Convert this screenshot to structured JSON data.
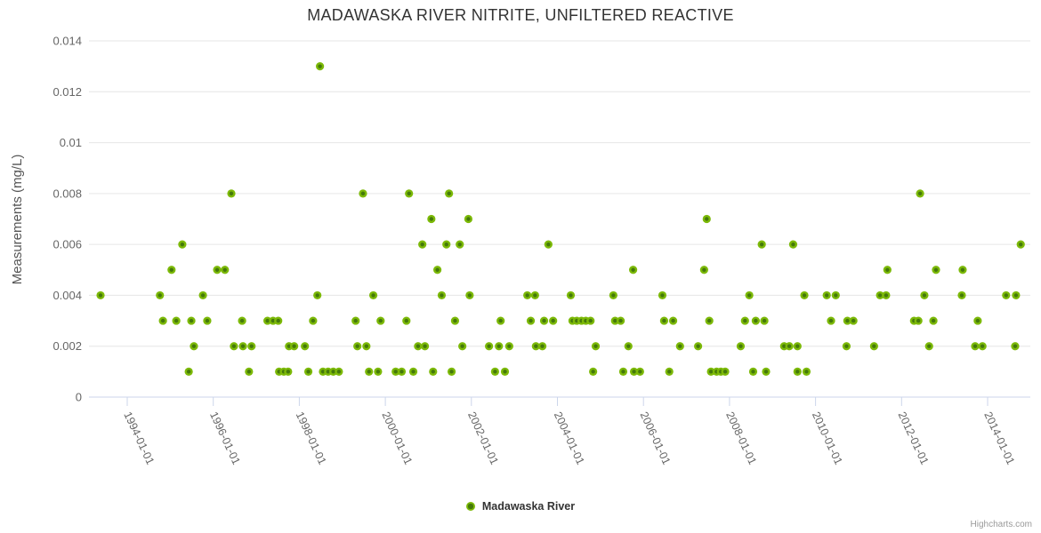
{
  "credits": "Highcharts.com",
  "colors": {
    "point_outer": "#7cb908",
    "point_inner": "#44790a",
    "grid_line": "#e6e6e6",
    "axis_line": "#ccd6eb",
    "title_text": "#333333",
    "axis_label_text": "#666666",
    "credits_text": "#999999"
  },
  "chart_data": {
    "type": "scatter",
    "title": "MADAWASKA RIVER NITRITE, UNFILTERED REACTIVE",
    "xlabel": "",
    "ylabel": "Measurements (mg/L)",
    "grid": true,
    "legend_position": "bottom-center",
    "xlim": [
      1993.1,
      2015.0
    ],
    "ylim": [
      0,
      0.014
    ],
    "x_tick_years": [
      1994,
      1996,
      1998,
      2000,
      2002,
      2004,
      2006,
      2008,
      2010,
      2012,
      2014
    ],
    "x_tick_labels": [
      "1994-01-01",
      "1996-01-01",
      "1998-01-01",
      "2000-01-01",
      "2002-01-01",
      "2004-01-01",
      "2006-01-01",
      "2008-01-01",
      "2010-01-01",
      "2012-01-01",
      "2014-01-01"
    ],
    "y_ticks": [
      0,
      0.002,
      0.004,
      0.006,
      0.008,
      0.01,
      0.012,
      0.014
    ],
    "y_tick_labels": [
      "0",
      "0.002",
      "0.004",
      "0.006",
      "0.008",
      "0.01",
      "0.012",
      "0.014"
    ],
    "series": [
      {
        "name": "Madawaska River",
        "points": [
          [
            1993.38,
            0.004
          ],
          [
            1994.76,
            0.004
          ],
          [
            1994.83,
            0.003
          ],
          [
            1995.03,
            0.005
          ],
          [
            1995.14,
            0.003
          ],
          [
            1995.28,
            0.006
          ],
          [
            1995.43,
            0.001
          ],
          [
            1995.49,
            0.003
          ],
          [
            1995.55,
            0.002
          ],
          [
            1995.76,
            0.004
          ],
          [
            1995.86,
            0.003
          ],
          [
            1996.09,
            0.005
          ],
          [
            1996.27,
            0.005
          ],
          [
            1996.42,
            0.008
          ],
          [
            1996.48,
            0.002
          ],
          [
            1996.67,
            0.003
          ],
          [
            1996.69,
            0.002
          ],
          [
            1996.83,
            0.001
          ],
          [
            1996.89,
            0.002
          ],
          [
            1997.26,
            0.003
          ],
          [
            1997.39,
            0.003
          ],
          [
            1997.51,
            0.003
          ],
          [
            1997.53,
            0.001
          ],
          [
            1997.64,
            0.001
          ],
          [
            1997.74,
            0.001
          ],
          [
            1997.76,
            0.002
          ],
          [
            1997.88,
            0.002
          ],
          [
            1998.13,
            0.002
          ],
          [
            1998.21,
            0.001
          ],
          [
            1998.32,
            0.003
          ],
          [
            1998.42,
            0.004
          ],
          [
            1998.48,
            0.013
          ],
          [
            1998.55,
            0.001
          ],
          [
            1998.67,
            0.001
          ],
          [
            1998.79,
            0.001
          ],
          [
            1998.92,
            0.001
          ],
          [
            1999.31,
            0.003
          ],
          [
            1999.35,
            0.002
          ],
          [
            1999.48,
            0.008
          ],
          [
            1999.56,
            0.002
          ],
          [
            1999.62,
            0.001
          ],
          [
            1999.72,
            0.004
          ],
          [
            1999.83,
            0.001
          ],
          [
            1999.89,
            0.003
          ],
          [
            2000.24,
            0.001
          ],
          [
            2000.38,
            0.001
          ],
          [
            2000.49,
            0.003
          ],
          [
            2000.55,
            0.008
          ],
          [
            2000.65,
            0.001
          ],
          [
            2000.76,
            0.002
          ],
          [
            2000.86,
            0.006
          ],
          [
            2000.92,
            0.002
          ],
          [
            2001.07,
            0.007
          ],
          [
            2001.11,
            0.001
          ],
          [
            2001.21,
            0.005
          ],
          [
            2001.31,
            0.004
          ],
          [
            2001.42,
            0.006
          ],
          [
            2001.48,
            0.008
          ],
          [
            2001.54,
            0.001
          ],
          [
            2001.62,
            0.003
          ],
          [
            2001.73,
            0.006
          ],
          [
            2001.79,
            0.002
          ],
          [
            2001.93,
            0.007
          ],
          [
            2001.96,
            0.004
          ],
          [
            2002.41,
            0.002
          ],
          [
            2002.55,
            0.001
          ],
          [
            2002.64,
            0.002
          ],
          [
            2002.68,
            0.003
          ],
          [
            2002.78,
            0.001
          ],
          [
            2002.88,
            0.002
          ],
          [
            2003.3,
            0.004
          ],
          [
            2003.38,
            0.003
          ],
          [
            2003.48,
            0.004
          ],
          [
            2003.5,
            0.002
          ],
          [
            2003.65,
            0.002
          ],
          [
            2003.69,
            0.003
          ],
          [
            2003.79,
            0.006
          ],
          [
            2003.9,
            0.003
          ],
          [
            2004.31,
            0.004
          ],
          [
            2004.35,
            0.003
          ],
          [
            2004.45,
            0.003
          ],
          [
            2004.56,
            0.003
          ],
          [
            2004.66,
            0.003
          ],
          [
            2004.77,
            0.003
          ],
          [
            2004.83,
            0.001
          ],
          [
            2004.89,
            0.002
          ],
          [
            2005.3,
            0.004
          ],
          [
            2005.34,
            0.003
          ],
          [
            2005.47,
            0.003
          ],
          [
            2005.53,
            0.001
          ],
          [
            2005.65,
            0.002
          ],
          [
            2005.76,
            0.005
          ],
          [
            2005.78,
            0.001
          ],
          [
            2005.92,
            0.001
          ],
          [
            2006.44,
            0.004
          ],
          [
            2006.48,
            0.003
          ],
          [
            2006.6,
            0.001
          ],
          [
            2006.69,
            0.003
          ],
          [
            2006.85,
            0.002
          ],
          [
            2007.27,
            0.002
          ],
          [
            2007.41,
            0.005
          ],
          [
            2007.47,
            0.007
          ],
          [
            2007.53,
            0.003
          ],
          [
            2007.57,
            0.001
          ],
          [
            2007.7,
            0.001
          ],
          [
            2007.8,
            0.001
          ],
          [
            2007.9,
            0.001
          ],
          [
            2008.26,
            0.002
          ],
          [
            2008.36,
            0.003
          ],
          [
            2008.46,
            0.004
          ],
          [
            2008.55,
            0.001
          ],
          [
            2008.61,
            0.003
          ],
          [
            2008.75,
            0.006
          ],
          [
            2008.81,
            0.003
          ],
          [
            2008.85,
            0.001
          ],
          [
            2009.27,
            0.002
          ],
          [
            2009.39,
            0.002
          ],
          [
            2009.48,
            0.006
          ],
          [
            2009.58,
            0.002
          ],
          [
            2009.58,
            0.001
          ],
          [
            2009.74,
            0.004
          ],
          [
            2009.79,
            0.001
          ],
          [
            2010.26,
            0.004
          ],
          [
            2010.36,
            0.003
          ],
          [
            2010.47,
            0.004
          ],
          [
            2010.72,
            0.002
          ],
          [
            2010.74,
            0.003
          ],
          [
            2010.88,
            0.003
          ],
          [
            2011.36,
            0.002
          ],
          [
            2011.5,
            0.004
          ],
          [
            2011.64,
            0.004
          ],
          [
            2011.67,
            0.005
          ],
          [
            2012.29,
            0.003
          ],
          [
            2012.39,
            0.003
          ],
          [
            2012.43,
            0.008
          ],
          [
            2012.53,
            0.004
          ],
          [
            2012.64,
            0.002
          ],
          [
            2012.74,
            0.003
          ],
          [
            2012.8,
            0.005
          ],
          [
            2013.4,
            0.004
          ],
          [
            2013.42,
            0.005
          ],
          [
            2013.71,
            0.002
          ],
          [
            2013.77,
            0.003
          ],
          [
            2013.88,
            0.002
          ],
          [
            2014.43,
            0.004
          ],
          [
            2014.64,
            0.002
          ],
          [
            2014.66,
            0.004
          ],
          [
            2014.77,
            0.006
          ]
        ]
      }
    ]
  }
}
